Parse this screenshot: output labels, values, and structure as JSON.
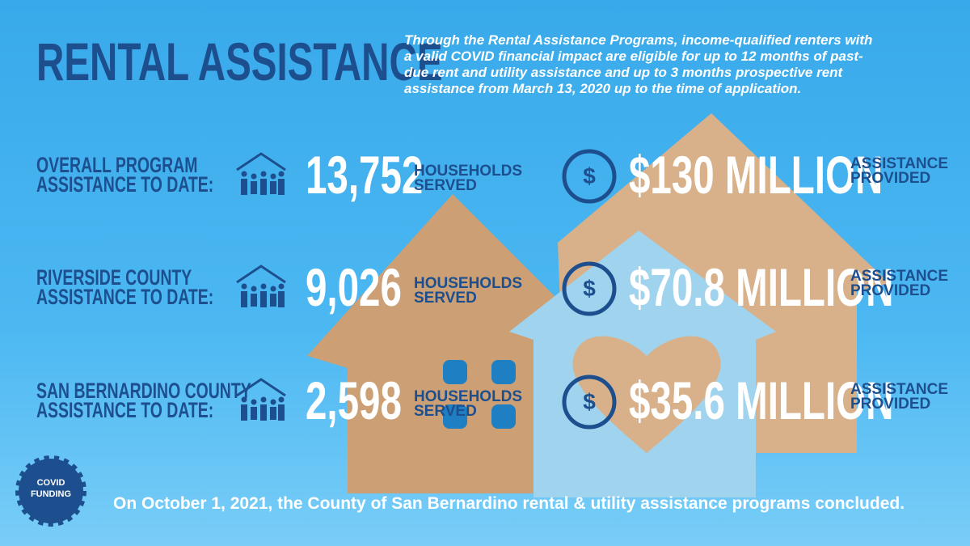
{
  "header": {
    "title": "RENTAL ASSISTANCE",
    "description": [
      "Through the Rental Assistance Programs, income-qualified renters with",
      "a valid COVID financial impact are eligible for up to 12 months of past-",
      "due rent and utility assistance and up to 3 months prospective rent",
      "assistance from March 13, 2020 up to the time of application."
    ]
  },
  "rows": [
    {
      "label": [
        "OVERALL PROGRAM",
        "ASSISTANCE TO DATE:"
      ],
      "households": "13,752",
      "households_label": [
        "HOUSEHOLDS",
        "SERVED"
      ],
      "amount": "$130 MILLION",
      "amount_label": [
        "ASSISTANCE",
        "PROVIDED"
      ]
    },
    {
      "label": [
        "RIVERSIDE COUNTY",
        "ASSISTANCE TO DATE:"
      ],
      "households": "9,026",
      "households_label": [
        "HOUSEHOLDS",
        "SERVED"
      ],
      "amount": "$70.8 MILLION",
      "amount_label": [
        "ASSISTANCE",
        "PROVIDED"
      ]
    },
    {
      "label": [
        "SAN BERNARDINO COUNTY",
        "ASSISTANCE TO DATE:"
      ],
      "households": "2,598",
      "households_label": [
        "HOUSEHOLDS",
        "SERVED"
      ],
      "amount": "$35.6 MILLION",
      "amount_label": [
        "ASSISTANCE",
        "PROVIDED"
      ]
    }
  ],
  "badge": [
    "COVID",
    "FUNDING"
  ],
  "footer": "On October 1, 2021, the County of San Bernardino rental & utility assistance programs concluded."
}
